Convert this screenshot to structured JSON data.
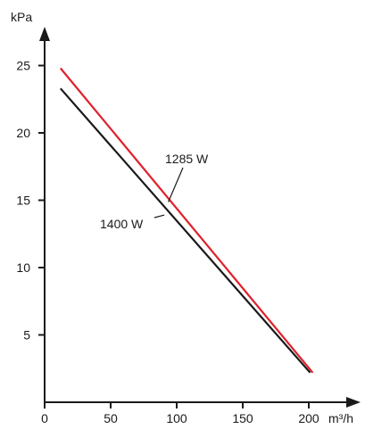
{
  "chart_data": {
    "type": "line",
    "xlabel": "m³/h",
    "ylabel": "kPa",
    "xlim": [
      0,
      220
    ],
    "ylim": [
      0,
      28
    ],
    "x_ticks": [
      0,
      50,
      100,
      150,
      200
    ],
    "y_ticks": [
      5,
      10,
      15,
      20,
      25
    ],
    "grid": false,
    "series": [
      {
        "name": "1285 W",
        "color": "#e0202a",
        "x": [
          12,
          203
        ],
        "y": [
          24.8,
          2.2
        ]
      },
      {
        "name": "1400 W",
        "color": "#1a1a1a",
        "x": [
          12,
          201
        ],
        "y": [
          23.3,
          2.2
        ]
      }
    ],
    "annotations": [
      {
        "text": "1285 W",
        "series": 0,
        "point_x": 95,
        "point_y": 15.0
      },
      {
        "text": "1400 W",
        "series": 1,
        "point_x": 90,
        "point_y": 14.1
      }
    ]
  }
}
